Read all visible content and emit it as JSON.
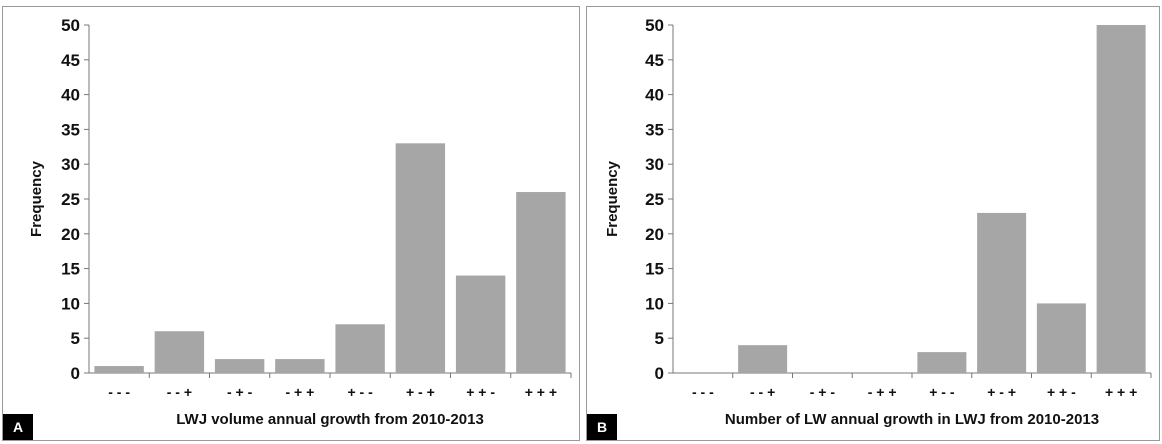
{
  "chart_data": [
    {
      "type": "bar",
      "panel_label": "A",
      "categories": [
        "- - -",
        "- - +",
        "- + -",
        "- + +",
        "+ - -",
        "+ - +",
        "+ + -",
        "+ + +"
      ],
      "values": [
        1,
        6,
        2,
        2,
        7,
        33,
        14,
        26
      ],
      "xlabel": "LWJ volume annual growth from 2010-2013",
      "ylabel": "Frequency",
      "ylim": [
        0,
        50
      ],
      "yticks": [
        0,
        5,
        10,
        15,
        20,
        25,
        30,
        35,
        40,
        45,
        50
      ],
      "bar_color": "#a6a6a6",
      "grid": false
    },
    {
      "type": "bar",
      "panel_label": "B",
      "categories": [
        "- - -",
        "- - +",
        "- + -",
        "- + +",
        "+ - -",
        "+ - +",
        "+ + -",
        "+ + +"
      ],
      "values": [
        0,
        4,
        0,
        0,
        3,
        23,
        10,
        50
      ],
      "xlabel": "Number of LW annual growth in LWJ from 2010-2013",
      "ylabel": "Frequency",
      "ylim": [
        0,
        50
      ],
      "yticks": [
        0,
        5,
        10,
        15,
        20,
        25,
        30,
        35,
        40,
        45,
        50
      ],
      "bar_color": "#a6a6a6",
      "grid": false
    }
  ]
}
